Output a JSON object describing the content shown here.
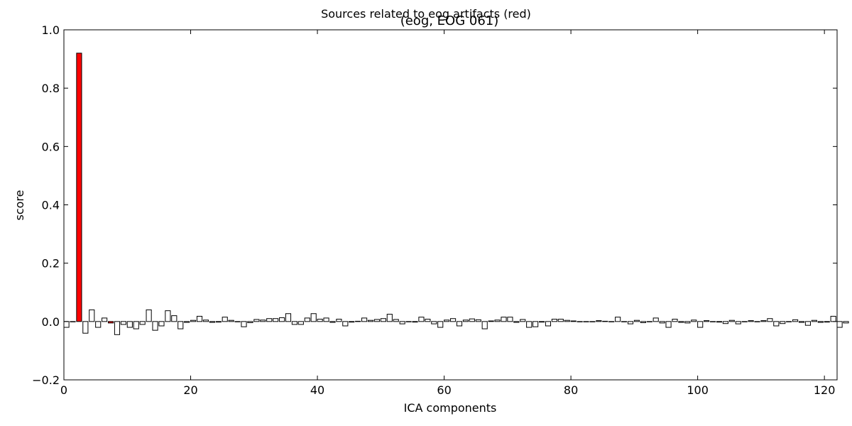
{
  "chart_data": {
    "type": "bar",
    "title": "Sources related to eog artifacts (red)",
    "subtitle": "(eog, EOG 061)",
    "xlabel": "ICA components",
    "ylabel": "score",
    "xlim": [
      0,
      122
    ],
    "ylim": [
      -0.2,
      1.0
    ],
    "xticks": [
      0,
      20,
      40,
      60,
      80,
      100,
      120
    ],
    "xtick_labels": [
      "0",
      "20",
      "40",
      "60",
      "80",
      "100",
      "120"
    ],
    "yticks": [
      -0.2,
      0.0,
      0.2,
      0.4,
      0.6,
      0.8,
      1.0
    ],
    "ytick_labels": [
      "−0.2",
      "0.0",
      "0.2",
      "0.4",
      "0.6",
      "0.8",
      "1.0"
    ],
    "grid": false,
    "colors": {
      "highlight": "#ff0000",
      "default": "#ffffff",
      "edge": "#000000"
    },
    "highlighted_components": [
      2,
      7
    ],
    "values": [
      -0.02,
      0.0,
      0.92,
      -0.04,
      0.04,
      -0.02,
      0.012,
      -0.005,
      -0.045,
      -0.01,
      -0.02,
      -0.025,
      -0.01,
      0.04,
      -0.03,
      -0.015,
      0.037,
      0.02,
      -0.025,
      -0.003,
      0.004,
      0.018,
      0.005,
      -0.003,
      -0.002,
      0.015,
      0.004,
      0.0,
      -0.018,
      -0.004,
      0.007,
      0.005,
      0.01,
      0.01,
      0.013,
      0.027,
      -0.01,
      -0.01,
      0.012,
      0.027,
      0.008,
      0.012,
      -0.003,
      0.008,
      -0.015,
      -0.002,
      0.001,
      0.012,
      0.004,
      0.007,
      0.01,
      0.025,
      0.007,
      -0.008,
      -0.001,
      -0.002,
      0.015,
      0.008,
      -0.008,
      -0.02,
      0.005,
      0.01,
      -0.015,
      0.005,
      0.009,
      0.006,
      -0.025,
      0.002,
      0.005,
      0.015,
      0.015,
      -0.003,
      0.007,
      -0.02,
      -0.018,
      -0.002,
      -0.015,
      0.008,
      0.008,
      0.004,
      0.002,
      0.0,
      -0.001,
      0.0,
      0.003,
      0.001,
      -0.001,
      0.015,
      -0.001,
      -0.008,
      0.004,
      -0.004,
      0.0,
      0.012,
      -0.005,
      -0.02,
      0.008,
      -0.003,
      -0.005,
      0.005,
      -0.02,
      0.003,
      0.0,
      -0.002,
      -0.007,
      0.004,
      -0.008,
      -0.001,
      0.003,
      0.0,
      0.003,
      0.01,
      -0.015,
      -0.007,
      -0.001,
      0.006,
      -0.003,
      -0.013,
      0.004,
      -0.003,
      -0.002,
      0.018,
      -0.02,
      -0.005
    ]
  }
}
